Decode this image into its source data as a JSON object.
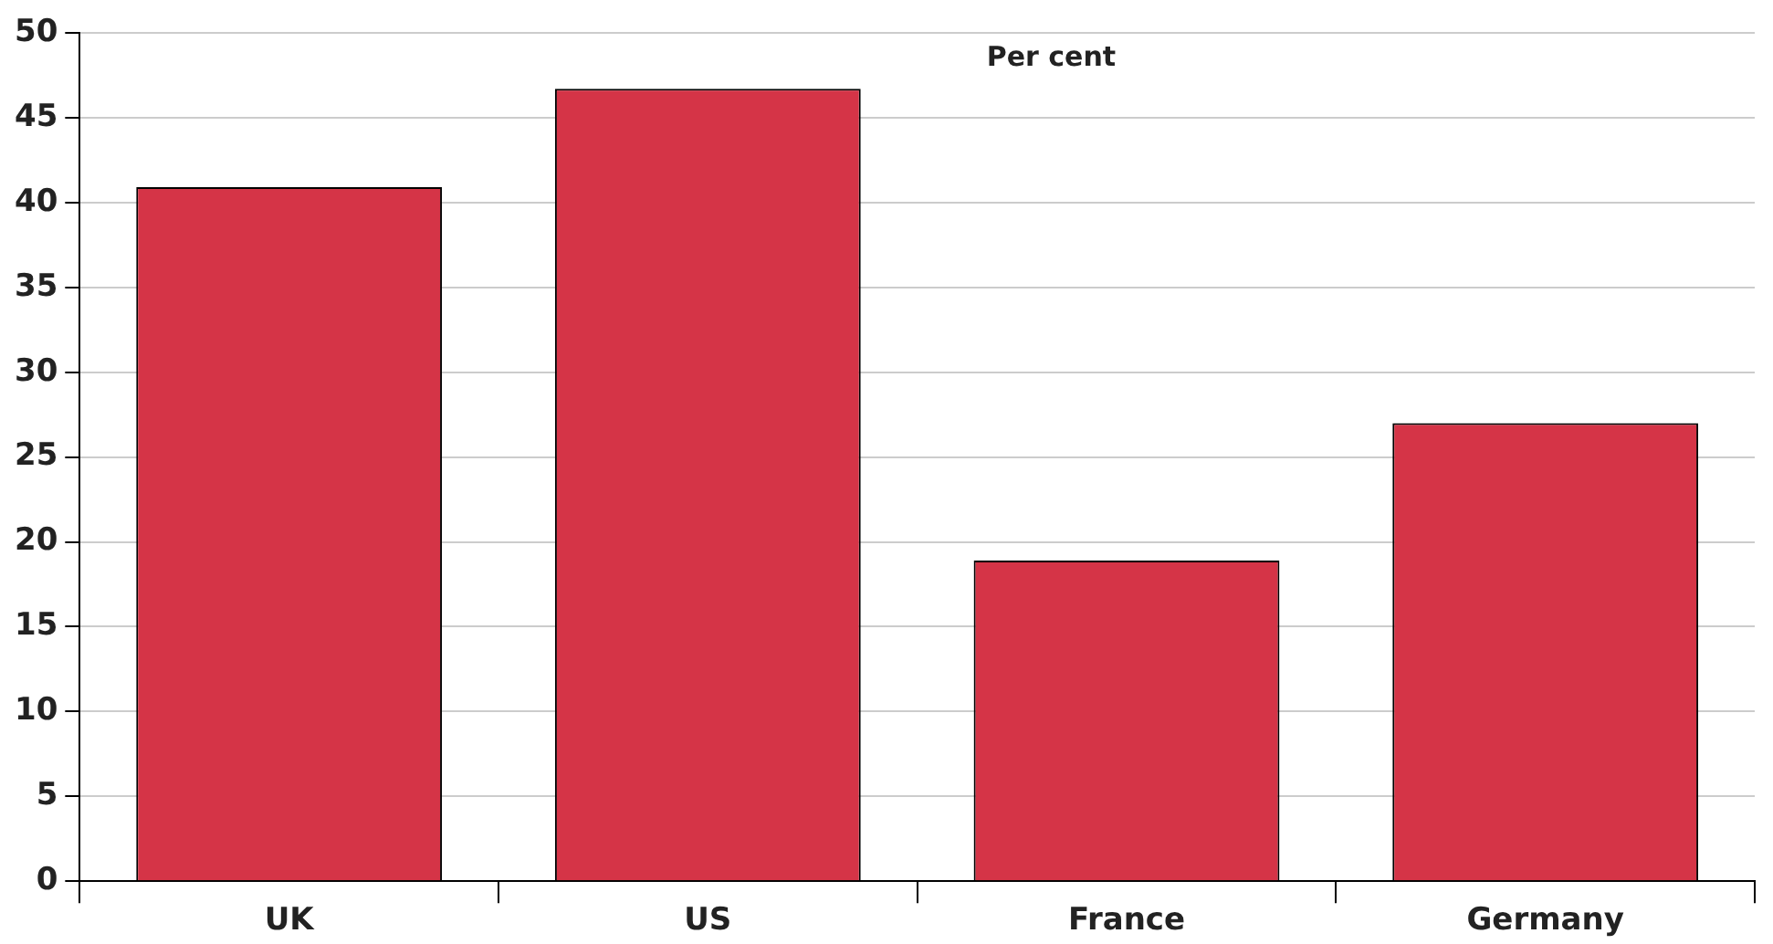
{
  "chart_data": {
    "type": "bar",
    "ylabel": "Per cent",
    "categories": [
      "UK",
      "US",
      "France",
      "Germany"
    ],
    "values": [
      40.9,
      46.7,
      18.9,
      27.0
    ],
    "color": "#d53447",
    "ylim": [
      0,
      50
    ],
    "yticks": [
      0,
      5,
      10,
      15,
      20,
      25,
      30,
      35,
      40,
      45,
      50
    ],
    "grid": "y",
    "legend": false
  }
}
